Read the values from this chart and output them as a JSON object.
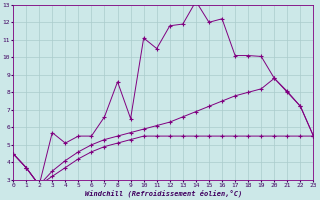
{
  "xlabel": "Windchill (Refroidissement éolien,°C)",
  "bg_color": "#cce8e8",
  "grid_color": "#aacccc",
  "line_color": "#800080",
  "xlim": [
    0,
    23
  ],
  "ylim": [
    3,
    13
  ],
  "xticks": [
    0,
    1,
    2,
    3,
    4,
    5,
    6,
    7,
    8,
    9,
    10,
    11,
    12,
    13,
    14,
    15,
    16,
    17,
    18,
    19,
    20,
    21,
    22,
    23
  ],
  "yticks": [
    3,
    4,
    5,
    6,
    7,
    8,
    9,
    10,
    11,
    12,
    13
  ],
  "line1_x": [
    0,
    1,
    2,
    3,
    4,
    5,
    6,
    7,
    8,
    9,
    10,
    11,
    12,
    13,
    14,
    15,
    16,
    17,
    18,
    19,
    20,
    21,
    22,
    23
  ],
  "line1_y": [
    4.5,
    3.7,
    2.7,
    5.7,
    5.1,
    5.5,
    5.5,
    6.6,
    8.6,
    6.5,
    11.1,
    10.5,
    11.8,
    11.9,
    13.2,
    12.0,
    12.2,
    10.1,
    10.1,
    10.05,
    8.8,
    8.05,
    7.2,
    5.5
  ],
  "line2_x": [
    0,
    1,
    2,
    3,
    4,
    5,
    6,
    7,
    8,
    9,
    10,
    11,
    12,
    13,
    14,
    15,
    16,
    17,
    18,
    19,
    20,
    21,
    22,
    23
  ],
  "line2_y": [
    4.5,
    3.7,
    2.7,
    3.5,
    4.1,
    4.6,
    5.0,
    5.3,
    5.5,
    5.7,
    5.9,
    6.1,
    6.3,
    6.6,
    6.9,
    7.2,
    7.5,
    7.8,
    8.0,
    8.2,
    8.8,
    8.0,
    7.2,
    5.5
  ],
  "line3_x": [
    0,
    1,
    2,
    3,
    4,
    5,
    6,
    7,
    8,
    9,
    10,
    11,
    12,
    13,
    14,
    15,
    16,
    17,
    18,
    19,
    20,
    21,
    22,
    23
  ],
  "line3_y": [
    4.5,
    3.7,
    2.7,
    3.2,
    3.7,
    4.2,
    4.6,
    4.9,
    5.1,
    5.3,
    5.5,
    5.5,
    5.5,
    5.5,
    5.5,
    5.5,
    5.5,
    5.5,
    5.5,
    5.5,
    5.5,
    5.5,
    5.5,
    5.5
  ]
}
